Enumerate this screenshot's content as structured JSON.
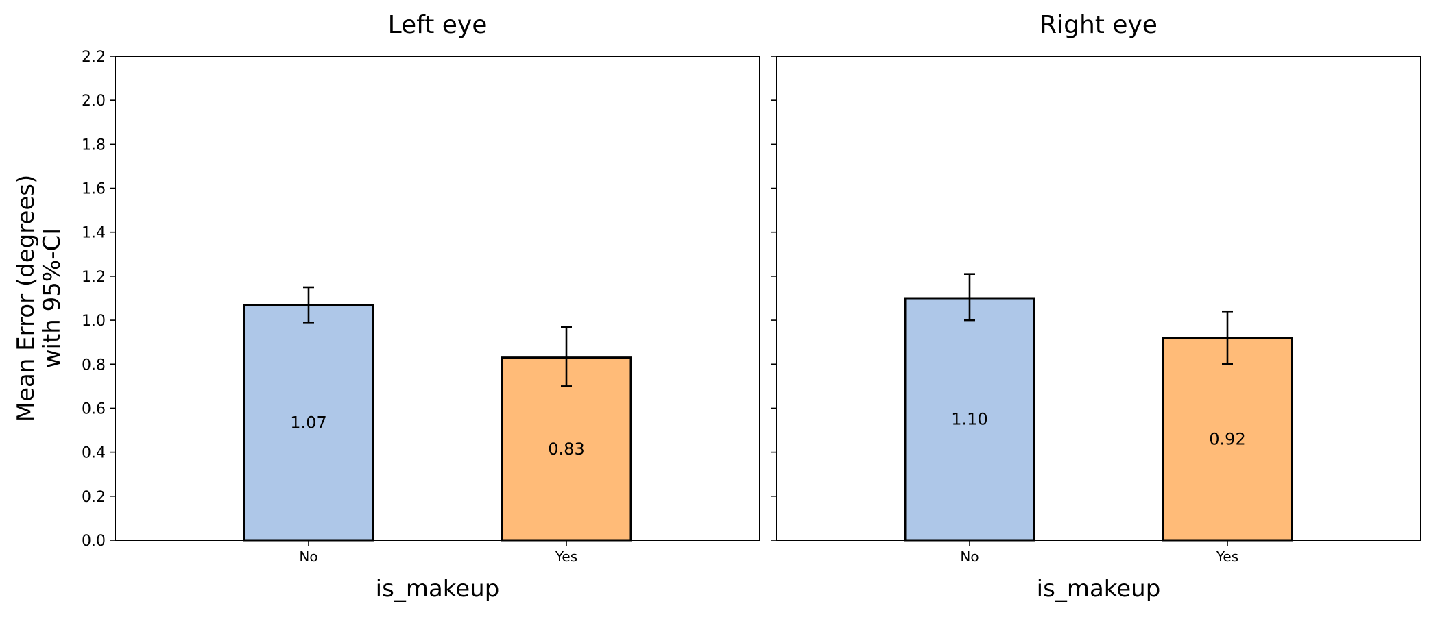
{
  "chart_data": {
    "type": "bar",
    "ylabel": "Mean Error (degrees)\nwith 95%-CI",
    "ylim": [
      0,
      2.2
    ],
    "yticks": [
      "0.0",
      "0.2",
      "0.4",
      "0.6",
      "0.8",
      "1.0",
      "1.2",
      "1.4",
      "1.6",
      "1.8",
      "2.0",
      "2.2"
    ],
    "shared_y": true,
    "grid": false,
    "colors": {
      "No": "#aec7e8",
      "Yes": "#ffbb78"
    },
    "panels": [
      {
        "title": "Left eye",
        "xlabel": "is_makeup",
        "categories": [
          "No",
          "Yes"
        ],
        "values": [
          1.07,
          0.83
        ],
        "value_labels": [
          "1.07",
          "0.83"
        ],
        "ci_low": [
          0.99,
          0.7
        ],
        "ci_high": [
          1.15,
          0.97
        ]
      },
      {
        "title": "Right eye",
        "xlabel": "is_makeup",
        "categories": [
          "No",
          "Yes"
        ],
        "values": [
          1.1,
          0.92
        ],
        "value_labels": [
          "1.10",
          "0.92"
        ],
        "ci_low": [
          1.0,
          0.8
        ],
        "ci_high": [
          1.21,
          1.04
        ]
      }
    ]
  }
}
